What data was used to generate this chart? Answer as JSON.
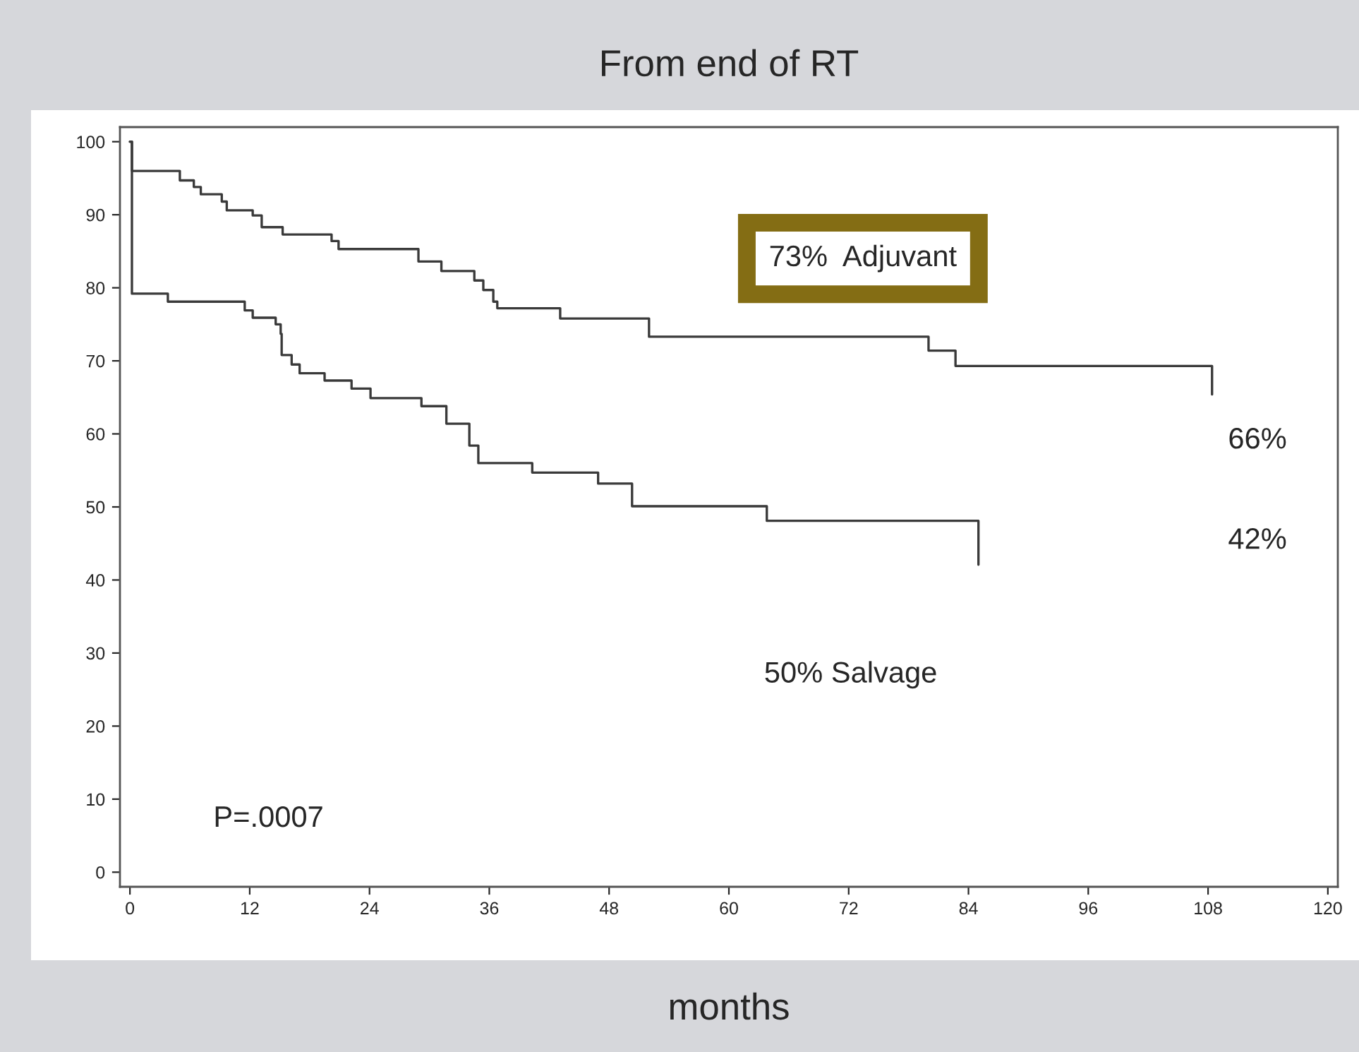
{
  "chart_data": {
    "type": "step",
    "title": "From end of RT",
    "xlabel": "months",
    "annotations": [
      "73%  Adjuvant",
      "66%",
      "42%",
      "50% Salvage",
      "P=.0007"
    ],
    "xlim": [
      -1,
      121
    ],
    "ylim": [
      -2,
      102
    ],
    "xticks": [
      0,
      12,
      24,
      36,
      48,
      60,
      72,
      84,
      96,
      108,
      120
    ],
    "yticks": [
      0,
      10,
      20,
      30,
      40,
      50,
      60,
      70,
      80,
      90,
      100
    ],
    "grid": false,
    "legend": false,
    "marker": "none",
    "line_style": "solid",
    "series": [
      {
        "color": "#3a3a3a",
        "x": [
          0,
          0.2,
          5.0,
          6.4,
          7.1,
          9.2,
          9.7,
          12.3,
          13.2,
          15.3,
          20.2,
          20.9,
          28.9,
          31.2,
          34.5,
          35.4,
          36.4,
          36.8,
          43.1,
          52,
          80,
          82.7,
          108.4
        ],
        "values": [
          100,
          96,
          94.7,
          93.8,
          92.8,
          91.8,
          90.6,
          89.9,
          88.3,
          87.3,
          86.4,
          85.3,
          83.6,
          82.3,
          81,
          79.7,
          78.1,
          77.2,
          75.8,
          73.3,
          71.4,
          69.3,
          65.4
        ]
      },
      {
        "color": "#3a3a3a",
        "x": [
          0,
          0.2,
          3.8,
          11.5,
          12.3,
          14.6,
          15.1,
          15.2,
          16.2,
          17.0,
          19.5,
          22.2,
          24.1,
          29.2,
          31.7,
          34.0,
          34.9,
          40.3,
          46.9,
          50.3,
          63.8,
          85.0
        ],
        "values": [
          100,
          79.2,
          78.1,
          76.9,
          75.9,
          75,
          73.7,
          70.8,
          69.5,
          68.3,
          67.3,
          66.2,
          64.9,
          63.8,
          61.4,
          58.4,
          56,
          54.7,
          53.2,
          50.1,
          48.1,
          42.1
        ]
      }
    ]
  }
}
